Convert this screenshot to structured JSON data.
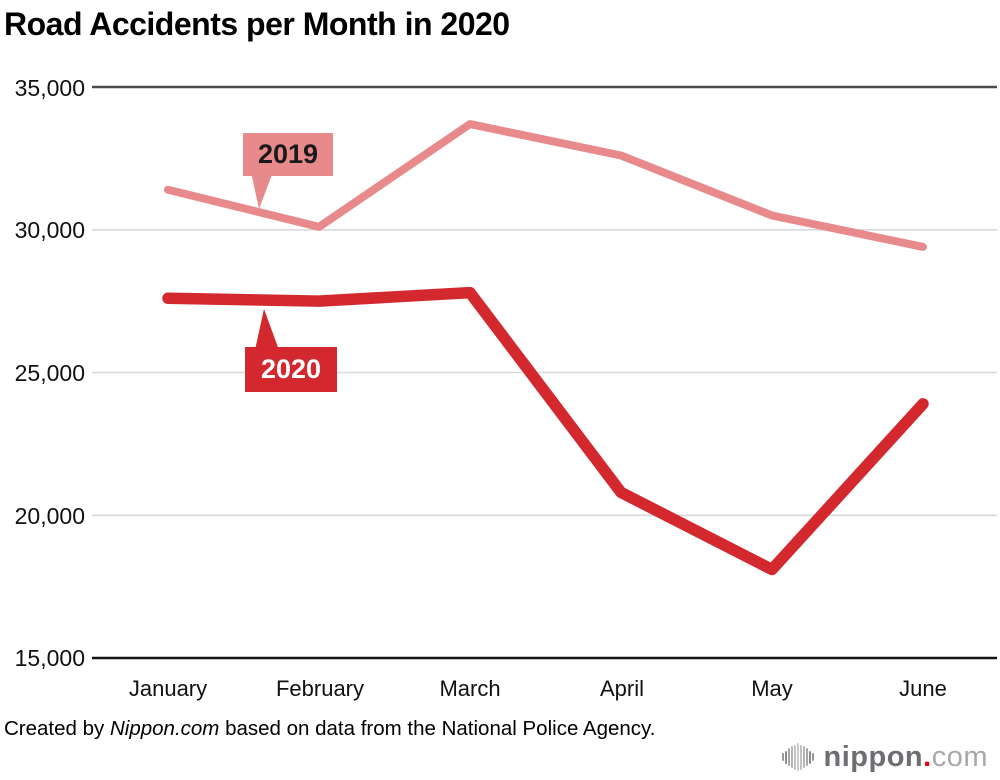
{
  "title": "Road Accidents per Month in 2020",
  "chart_data": {
    "type": "line",
    "categories": [
      "January",
      "February",
      "March",
      "April",
      "May",
      "June"
    ],
    "series": [
      {
        "name": "2019",
        "color": "#E8898B",
        "stroke_width": 8,
        "values": [
          31400,
          30100,
          33700,
          32600,
          30500,
          29400
        ]
      },
      {
        "name": "2020",
        "color": "#D2282E",
        "stroke_width": 11.5,
        "values": [
          27600,
          27500,
          27800,
          20800,
          18100,
          23900
        ]
      }
    ],
    "y_ticks": [
      "35,000",
      "30,000",
      "25,000",
      "20,000",
      "15,000"
    ],
    "y_tick_values": [
      35000,
      30000,
      25000,
      20000,
      15000
    ],
    "ylim": [
      15000,
      35000
    ],
    "grid": "horizontal",
    "legend_position": "inline-callouts",
    "style": {
      "outer_grid_color_top": "#4d4d4d",
      "outer_grid_color_bottom": "#151515",
      "inner_grid_color": "#d9d9d9"
    }
  },
  "footer": {
    "prefix": "Created by ",
    "source_name": "Nippon.com",
    "suffix": " based on data from the National Police Agency."
  },
  "logo": {
    "name_bold": "nippon",
    "dot": ".",
    "name_light": "com"
  }
}
